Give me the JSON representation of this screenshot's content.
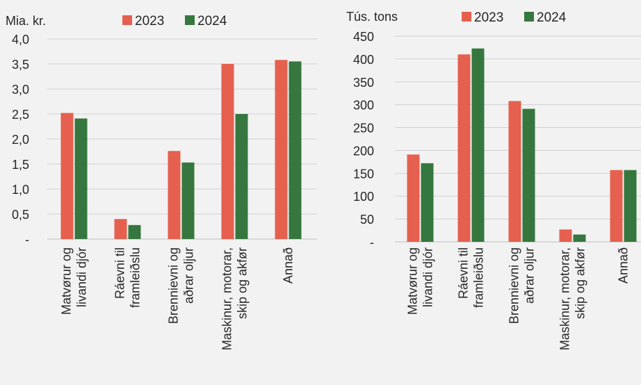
{
  "colors": {
    "s2023": "#e5604e",
    "s2024": "#36773f",
    "grid": "#d0d0d0",
    "axis": "#bfbfbf",
    "background": "#f2f2f2"
  },
  "chart_data": [
    {
      "type": "bar",
      "unit_label": "Mia. kr.",
      "categories": [
        [
          "Matvørur og",
          "livandi djór"
        ],
        [
          "Ráevni til",
          "framleiðslu"
        ],
        [
          "Brennievni og",
          "aðrar oljur"
        ],
        [
          "Maskinur, motorar,",
          "skip og akfør"
        ],
        [
          "Annað"
        ]
      ],
      "series": [
        {
          "name": "2023",
          "values": [
            2.52,
            0.4,
            1.76,
            3.5,
            3.58
          ]
        },
        {
          "name": "2024",
          "values": [
            2.41,
            0.28,
            1.53,
            2.5,
            3.55
          ]
        }
      ],
      "ylim": [
        0,
        4.0
      ],
      "yticks": [
        "-",
        "0,5",
        "1,0",
        "1,5",
        "2,0",
        "2,5",
        "3,0",
        "3,5",
        "4,0"
      ],
      "grid": true,
      "legend": "top"
    },
    {
      "type": "bar",
      "unit_label": "Tús. tons",
      "categories": [
        [
          "Matvørur og",
          "livandi djór"
        ],
        [
          "Ráevni til",
          "framleiðslu"
        ],
        [
          "Brennievni og",
          "aðrar oljur"
        ],
        [
          "Maskinur, motorar,",
          "skip og akfør"
        ],
        [
          "Annað"
        ]
      ],
      "series": [
        {
          "name": "2023",
          "values": [
            191,
            410,
            308,
            27,
            157
          ]
        },
        {
          "name": "2024",
          "values": [
            172,
            423,
            291,
            16,
            157
          ]
        }
      ],
      "ylim": [
        0,
        450
      ],
      "yticks": [
        "-",
        "50",
        "100",
        "150",
        "200",
        "250",
        "300",
        "350",
        "400",
        "450"
      ],
      "grid": true,
      "legend": "top"
    }
  ]
}
